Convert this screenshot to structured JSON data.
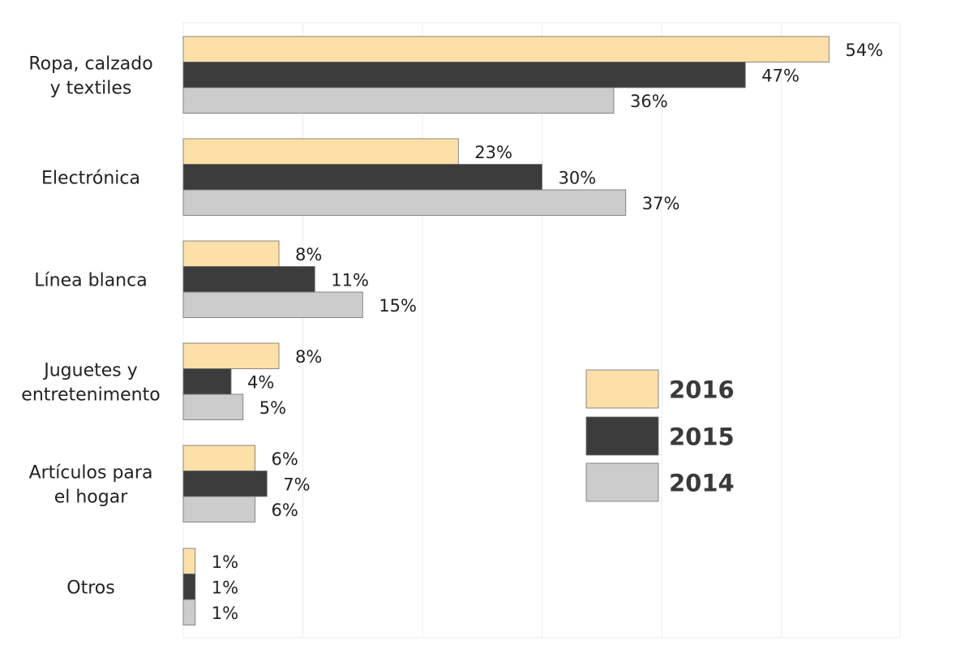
{
  "chart_data": {
    "type": "bar",
    "orientation": "horizontal",
    "categories": [
      [
        "Ropa, calzado",
        "y textiles"
      ],
      [
        "Electrónica"
      ],
      [
        "Línea blanca"
      ],
      [
        "Juguetes y",
        "entretenimento"
      ],
      [
        "Artículos para",
        "el hogar"
      ],
      [
        "Otros"
      ]
    ],
    "series": [
      {
        "name": "2016",
        "color": "#fde0a8",
        "values": [
          54,
          23,
          8,
          8,
          6,
          1
        ],
        "labels": [
          "54%",
          "23%",
          "8%",
          "8%",
          "6%",
          "1%"
        ]
      },
      {
        "name": "2015",
        "color": "#3c3c3c",
        "values": [
          47,
          30,
          11,
          4,
          7,
          1
        ],
        "labels": [
          "47%",
          "30%",
          "11%",
          "4%",
          "7%",
          "1%"
        ]
      },
      {
        "name": "2014",
        "color": "#cccccc",
        "values": [
          36,
          37,
          15,
          5,
          6,
          1
        ],
        "labels": [
          "36%",
          "37%",
          "15%",
          "5%",
          "6%",
          "1%"
        ]
      }
    ],
    "xlim": [
      0,
      60
    ],
    "grid": true,
    "legend_position": "right"
  }
}
